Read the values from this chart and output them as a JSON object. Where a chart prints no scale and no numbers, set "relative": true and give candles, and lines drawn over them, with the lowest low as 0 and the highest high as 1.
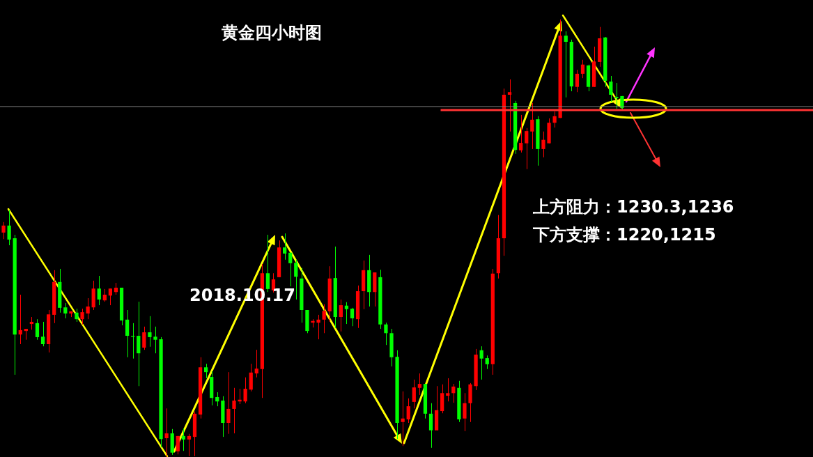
{
  "chart_data": {
    "type": "candlestick",
    "title": "黄金四小时图",
    "relative": true,
    "legend": false,
    "annotations": [
      "2018.10.17",
      "上方阻力：1230.3,1236",
      "下方支撑：1220,1215"
    ],
    "ref_lines": [
      {
        "axis": "y",
        "value": 0.801,
        "color": "#808080"
      },
      {
        "axis": "y",
        "value": 0.793,
        "color": "#ff3333"
      }
    ],
    "categories": [
      null,
      null,
      null,
      null,
      null,
      null,
      null,
      null,
      null,
      null,
      null,
      null,
      null,
      null,
      null,
      null,
      null,
      null,
      null,
      null,
      null,
      null,
      null,
      null,
      null,
      null,
      null,
      null,
      null,
      null,
      null,
      null,
      null,
      null,
      null,
      null,
      null,
      null,
      null,
      null,
      null,
      null,
      null,
      null,
      null,
      null,
      null,
      null,
      null,
      null,
      null,
      null,
      null,
      null,
      null,
      null,
      null,
      null,
      null,
      null,
      null,
      null,
      null,
      null,
      null,
      null,
      null,
      null,
      null,
      null,
      null,
      null,
      null,
      null,
      null,
      null,
      null,
      null,
      null,
      null,
      null,
      null,
      null,
      null,
      null,
      null,
      null,
      null,
      null,
      null,
      null,
      null,
      null,
      null,
      null,
      null,
      null,
      null,
      null,
      null,
      null,
      null,
      null,
      null,
      null,
      null,
      null,
      null,
      null,
      null,
      null
    ],
    "colors": [
      "#ff0000",
      "#00ff00",
      "#00ff00",
      "#ff0000",
      "#ff0000",
      "#ff0000",
      "#00ff00",
      "#00ff00",
      "#ff0000",
      "#ff0000",
      "#00ff00",
      "#00ff00",
      "#ff0000",
      "#00ff00",
      "#ff0000",
      "#ff0000",
      "#ff0000",
      "#00ff00",
      "#ff0000",
      "#ff0000",
      "#ff0000",
      "#00ff00",
      "#00ff00",
      "#00ff00",
      "#00ff00",
      "#ff0000",
      "#00ff00",
      "#00ff00",
      "#00ff00",
      "#ff0000",
      "#00ff00",
      "#ff0000",
      "#00ff00",
      "#ff0000",
      "#ff0000",
      "#ff0000",
      "#00ff00",
      "#00ff00",
      "#00ff00",
      "#00ff00",
      "#ff0000",
      "#ff0000",
      "#ff0000",
      "#ff0000",
      "#ff0000",
      "#ff0000",
      "#ff0000",
      "#00ff00",
      "#ff0000",
      "#ff0000",
      "#00ff00",
      "#00ff00",
      "#00ff00",
      "#00ff00",
      "#00ff00",
      "#ff0000",
      "#ff0000",
      "#ff0000",
      "#ff0000",
      "#00ff00",
      "#ff0000",
      "#00ff00",
      "#00ff00",
      "#ff0000",
      "#ff0000",
      "#00ff00",
      "#ff0000",
      "#00ff00",
      "#00ff00",
      "#00ff00",
      "#00ff00",
      "#ff0000",
      "#ff0000",
      "#ff0000",
      "#ff0000",
      "#00ff00",
      "#00ff00",
      "#ff0000",
      "#ff0000",
      "#ff0000",
      "#ff0000",
      "#00ff00",
      "#ff0000",
      "#ff0000",
      "#ff0000",
      "#00ff00",
      "#00ff00",
      "#ff0000",
      "#ff0000",
      "#ff0000",
      "#ff0000",
      "#00ff00",
      "#ff0000",
      "#ff0000",
      "#ff0000",
      "#00ff00",
      "#ff0000",
      "#ff0000",
      "#ff0000",
      "#ff0000",
      "#00ff00",
      "#00ff00",
      "#ff0000",
      "#ff0000",
      "#00ff00",
      "#ff0000",
      "#ff0000",
      "#00ff00",
      "#00ff00",
      "#00ff00",
      "#00ff00"
    ],
    "ohlc": [
      [
        0.513,
        0.537,
        0.498,
        0.529
      ],
      [
        0.529,
        0.565,
        0.484,
        0.497
      ],
      [
        0.5,
        0.508,
        0.188,
        0.28
      ],
      [
        0.28,
        0.371,
        0.258,
        0.29
      ],
      [
        0.288,
        0.293,
        0.268,
        0.293
      ],
      [
        0.304,
        0.32,
        0.291,
        0.309
      ],
      [
        0.306,
        0.315,
        0.268,
        0.274
      ],
      [
        0.275,
        0.309,
        0.253,
        0.258
      ],
      [
        0.258,
        0.336,
        0.239,
        0.326
      ],
      [
        0.325,
        0.427,
        0.306,
        0.4
      ],
      [
        0.4,
        0.43,
        0.33,
        0.341
      ],
      [
        0.342,
        0.352,
        0.317,
        0.328
      ],
      [
        0.328,
        0.333,
        0.32,
        0.333
      ],
      [
        0.33,
        0.339,
        0.309,
        0.315
      ],
      [
        0.315,
        0.339,
        0.303,
        0.331
      ],
      [
        0.328,
        0.363,
        0.315,
        0.344
      ],
      [
        0.342,
        0.403,
        0.336,
        0.385
      ],
      [
        0.385,
        0.414,
        0.347,
        0.36
      ],
      [
        0.358,
        0.384,
        0.355,
        0.371
      ],
      [
        0.369,
        0.385,
        0.347,
        0.385
      ],
      [
        0.377,
        0.398,
        0.371,
        0.387
      ],
      [
        0.387,
        0.387,
        0.301,
        0.312
      ],
      [
        0.314,
        0.336,
        0.228,
        0.277
      ],
      [
        0.277,
        0.306,
        0.225,
        0.275
      ],
      [
        0.277,
        0.355,
        0.162,
        0.237
      ],
      [
        0.25,
        0.298,
        0.245,
        0.285
      ],
      [
        0.285,
        0.322,
        0.252,
        0.274
      ],
      [
        0.275,
        0.298,
        0.237,
        0.268
      ],
      [
        0.269,
        0.274,
        0.022,
        0.041
      ],
      [
        0.043,
        0.111,
        0,
        0.054
      ],
      [
        0.054,
        0.064,
        0.005,
        0.01
      ],
      [
        0.013,
        0.048,
        0.006,
        0.048
      ],
      [
        0.048,
        0.065,
        0.014,
        0.04
      ],
      [
        0.04,
        0.053,
        0.002,
        0.048
      ],
      [
        0.046,
        0.104,
        0.002,
        0.099
      ],
      [
        0.097,
        0.228,
        0.088,
        0.205
      ],
      [
        0.205,
        0.213,
        0.18,
        0.194
      ],
      [
        0.183,
        0.196,
        0.118,
        0.135
      ],
      [
        0.137,
        0.148,
        0.116,
        0.127
      ],
      [
        0.129,
        0.139,
        0.046,
        0.078
      ],
      [
        0.078,
        0.194,
        0.053,
        0.11
      ],
      [
        0.11,
        0.158,
        0.054,
        0.129
      ],
      [
        0.127,
        0.156,
        0.121,
        0.131
      ],
      [
        0.127,
        0.182,
        0.123,
        0.156
      ],
      [
        0.154,
        0.213,
        0.15,
        0.193
      ],
      [
        0.191,
        0.245,
        0.182,
        0.202
      ],
      [
        0.201,
        0.441,
        0.135,
        0.42
      ],
      [
        0.42,
        0.508,
        0.377,
        0.384
      ],
      [
        0.381,
        0.42,
        0.376,
        0.406
      ],
      [
        0.411,
        0.495,
        0.411,
        0.479
      ],
      [
        0.479,
        0.511,
        0.451,
        0.465
      ],
      [
        0.467,
        0.467,
        0.39,
        0.443
      ],
      [
        0.444,
        0.451,
        0.36,
        0.412
      ],
      [
        0.408,
        0.432,
        0.307,
        0.336
      ],
      [
        0.336,
        0.336,
        0.283,
        0.288
      ],
      [
        0.307,
        0.315,
        0.296,
        0.311
      ],
      [
        0.307,
        0.325,
        0.269,
        0.314
      ],
      [
        0.314,
        0.349,
        0.283,
        0.334
      ],
      [
        0.333,
        0.436,
        0.309,
        0.408
      ],
      [
        0.409,
        0.481,
        0.295,
        0.32
      ],
      [
        0.32,
        0.36,
        0.287,
        0.347
      ],
      [
        0.346,
        0.354,
        0.304,
        0.338
      ],
      [
        0.339,
        0.341,
        0.299,
        0.317
      ],
      [
        0.315,
        0.392,
        0.295,
        0.379
      ],
      [
        0.379,
        0.449,
        0.338,
        0.427
      ],
      [
        0.427,
        0.462,
        0.344,
        0.377
      ],
      [
        0.377,
        0.422,
        0.344,
        0.422
      ],
      [
        0.411,
        0.428,
        0.293,
        0.303
      ],
      [
        0.303,
        0.307,
        0.256,
        0.283
      ],
      [
        0.283,
        0.293,
        0.207,
        0.228
      ],
      [
        0.229,
        0.244,
        0.041,
        0.078
      ],
      [
        0.08,
        0.15,
        0.025,
        0.088
      ],
      [
        0.086,
        0.134,
        0.078,
        0.116
      ],
      [
        0.126,
        0.177,
        0.111,
        0.159
      ],
      [
        0.158,
        0.191,
        0.142,
        0.167
      ],
      [
        0.167,
        0.167,
        0.088,
        0.099
      ],
      [
        0.099,
        0.123,
        0.021,
        0.061
      ],
      [
        0.061,
        0.162,
        0.061,
        0.107
      ],
      [
        0.105,
        0.166,
        0.1,
        0.146
      ],
      [
        0.14,
        0.18,
        0.127,
        0.146
      ],
      [
        0.146,
        0.167,
        0.124,
        0.161
      ],
      [
        0.158,
        0.174,
        0.08,
        0.086
      ],
      [
        0.088,
        0.146,
        0.059,
        0.123
      ],
      [
        0.123,
        0.169,
        0.08,
        0.166
      ],
      [
        0.162,
        0.247,
        0.153,
        0.234
      ],
      [
        0.244,
        0.253,
        0.177,
        0.225
      ],
      [
        0.226,
        0.232,
        0.201,
        0.212
      ],
      [
        0.212,
        0.43,
        0.188,
        0.419
      ],
      [
        0.42,
        0.553,
        0.408,
        0.5
      ],
      [
        0.5,
        0.842,
        0.46,
        0.828
      ],
      [
        0.828,
        0.863,
        0.744,
        0.834
      ],
      [
        0.809,
        0.814,
        0.693,
        0.702
      ],
      [
        0.701,
        0.782,
        0.696,
        0.718
      ],
      [
        0.717,
        0.752,
        0.658,
        0.745
      ],
      [
        0.744,
        0.809,
        0.704,
        0.771
      ],
      [
        0.772,
        0.779,
        0.666,
        0.704
      ],
      [
        0.704,
        0.744,
        0.685,
        0.725
      ],
      [
        0.717,
        0.774,
        0.717,
        0.764
      ],
      [
        0.764,
        0.79,
        0.753,
        0.779
      ],
      [
        0.775,
        1,
        0.775,
        0.963
      ],
      [
        0.963,
        0.973,
        0.822,
        0.949
      ],
      [
        0.949,
        0.954,
        0.836,
        0.847
      ],
      [
        0.846,
        0.885,
        0.834,
        0.876
      ],
      [
        0.876,
        0.908,
        0.866,
        0.897
      ],
      [
        0.895,
        0.897,
        0.836,
        0.846
      ],
      [
        0.846,
        0.938,
        0.846,
        0.904
      ],
      [
        0.903,
        0.983,
        0.892,
        0.957
      ],
      [
        0.959,
        0.96,
        0.846,
        0.86
      ],
      [
        0.858,
        0.871,
        0.812,
        0.828
      ],
      [
        0.823,
        0.855,
        0.796,
        0.82
      ],
      [
        0.825,
        0.825,
        0.795,
        0.798
      ]
    ]
  }
}
